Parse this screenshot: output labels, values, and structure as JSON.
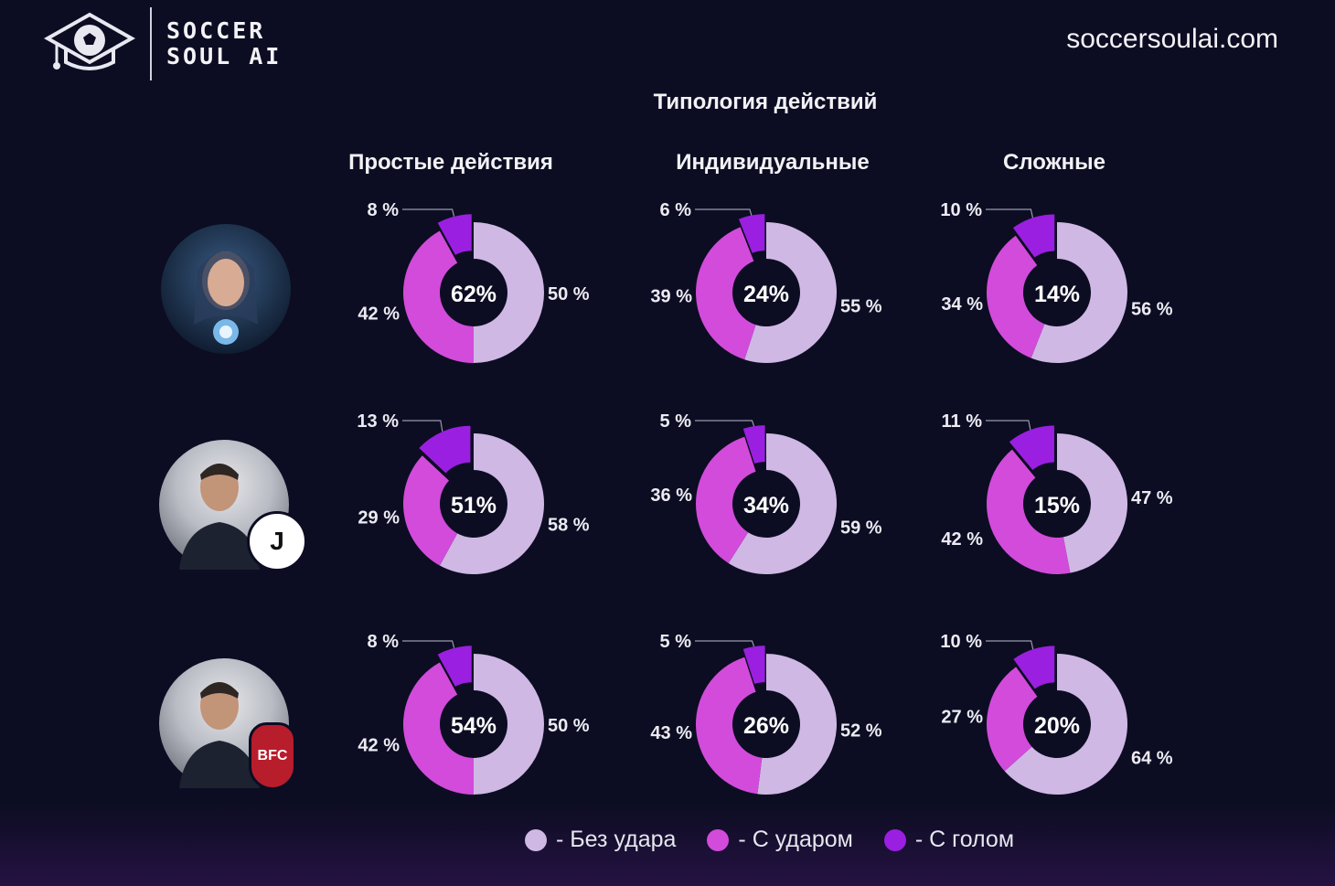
{
  "brand": {
    "line1": "SOCCER",
    "line2": "SOUL AI",
    "site": "soccersoulai.com"
  },
  "title": "Типология действий",
  "columns": [
    "Простые действия",
    "Индивидуальные",
    "Сложные"
  ],
  "rows": [
    {
      "avatar": "ai-girl-avatar",
      "badge": ""
    },
    {
      "avatar": "coach-avatar",
      "badge": "J"
    },
    {
      "avatar": "coach-avatar",
      "badge": "BFC"
    }
  ],
  "colors": {
    "bez_udara": "#cfb8e4",
    "s_udarom": "#d24bdb",
    "s_golom": "#9b1fe0",
    "background": "#0c0d22"
  },
  "legend": [
    "- Без удара",
    "- С ударом",
    "- С голом"
  ],
  "chart_data": [
    {
      "type": "pie",
      "row": 0,
      "col": 0,
      "center": "62%",
      "values": [
        50,
        42,
        8
      ],
      "labels": [
        "50 %",
        "42 %",
        "8 %"
      ]
    },
    {
      "type": "pie",
      "row": 0,
      "col": 1,
      "center": "24%",
      "values": [
        55,
        39,
        6
      ],
      "labels": [
        "55 %",
        "39 %",
        "6 %"
      ]
    },
    {
      "type": "pie",
      "row": 0,
      "col": 2,
      "center": "14%",
      "values": [
        56,
        34,
        10
      ],
      "labels": [
        "56 %",
        "34 %",
        "10 %"
      ]
    },
    {
      "type": "pie",
      "row": 1,
      "col": 0,
      "center": "51%",
      "values": [
        58,
        29,
        13
      ],
      "labels": [
        "58 %",
        "29 %",
        "13 %"
      ]
    },
    {
      "type": "pie",
      "row": 1,
      "col": 1,
      "center": "34%",
      "values": [
        59,
        36,
        5
      ],
      "labels": [
        "59 %",
        "36 %",
        "5 %"
      ]
    },
    {
      "type": "pie",
      "row": 1,
      "col": 2,
      "center": "15%",
      "values": [
        47,
        42,
        11
      ],
      "labels": [
        "47 %",
        "42 %",
        "11 %"
      ]
    },
    {
      "type": "pie",
      "row": 2,
      "col": 0,
      "center": "54%",
      "values": [
        50,
        42,
        8
      ],
      "labels": [
        "50 %",
        "42 %",
        "8 %"
      ]
    },
    {
      "type": "pie",
      "row": 2,
      "col": 1,
      "center": "26%",
      "values": [
        52,
        43,
        5
      ],
      "labels": [
        "52 %",
        "43 %",
        "5 %"
      ]
    },
    {
      "type": "pie",
      "row": 2,
      "col": 2,
      "center": "20%",
      "values": [
        64,
        27,
        10
      ],
      "labels": [
        "64 %",
        "27 %",
        "10 %"
      ]
    }
  ]
}
